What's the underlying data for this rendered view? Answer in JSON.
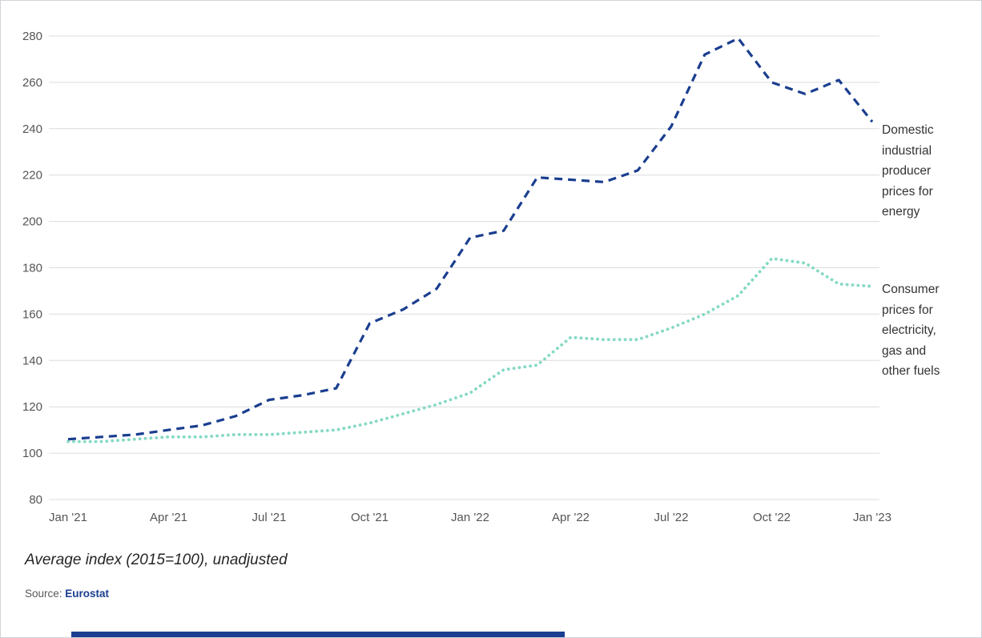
{
  "page": {
    "caption": "Average index (2015=100), unadjusted",
    "source_label": "Source:",
    "source_name": "Eurostat"
  },
  "colors": {
    "accent_blue": "#1a3e8f",
    "mint_green": "#84d9c4",
    "grid": "#dcdcdc",
    "axis_text": "#555555",
    "label_text": "#333333"
  },
  "chart_data": {
    "type": "line",
    "title": "",
    "xlabel": "",
    "ylabel": "",
    "ylim": [
      80,
      280
    ],
    "y_ticks": [
      80,
      100,
      120,
      140,
      160,
      180,
      200,
      220,
      240,
      260,
      280
    ],
    "grid": "horizontal",
    "x_labels": [
      "Jan '21",
      "Feb '21",
      "Mar '21",
      "Apr '21",
      "May '21",
      "Jun '21",
      "Jul '21",
      "Aug '21",
      "Sep '21",
      "Oct '21",
      "Nov '21",
      "Dec '21",
      "Jan '22",
      "Feb '22",
      "Mar '22",
      "Apr '22",
      "May '22",
      "Jun '22",
      "Jul '22",
      "Aug '22",
      "Sep '22",
      "Oct '22",
      "Nov '22",
      "Dec '22",
      "Jan '23"
    ],
    "x_tick_labels": [
      "Jan '21",
      "Apr '21",
      "Jul '21",
      "Oct '21",
      "Jan '22",
      "Apr '22",
      "Jul '22",
      "Oct '22",
      "Jan '23"
    ],
    "x_tick_positions": [
      0,
      3,
      6,
      9,
      12,
      15,
      18,
      21,
      24
    ],
    "legend_position": "right-of-line-end",
    "series": [
      {
        "name": "Domestic industrial producer prices for energy",
        "style": "dashed",
        "color": "#1a3e8f",
        "values": [
          106,
          107,
          108,
          110,
          112,
          116,
          123,
          125,
          128,
          156,
          162,
          171,
          193,
          196,
          219,
          218,
          217,
          222,
          241,
          272,
          279,
          260,
          255,
          261,
          243
        ]
      },
      {
        "name": "Consumer prices for electricity, gas and other fuels",
        "style": "dotted",
        "color": "#84d9c4",
        "values": [
          105,
          105,
          106,
          107,
          107,
          108,
          108,
          109,
          110,
          113,
          117,
          121,
          126,
          136,
          138,
          150,
          149,
          149,
          154,
          160,
          168,
          184,
          182,
          173,
          172
        ]
      }
    ]
  }
}
